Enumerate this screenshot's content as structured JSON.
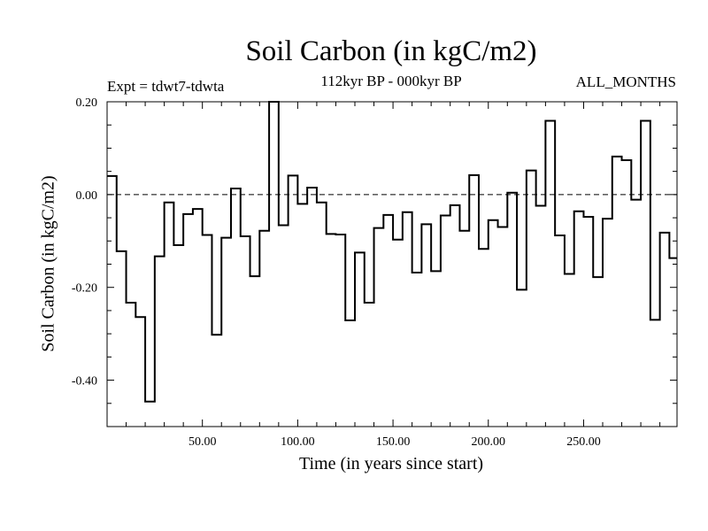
{
  "chart_data": {
    "type": "line",
    "style": "step",
    "title": "Soil Carbon (in kgC/m2)",
    "subtitle": "112kyr BP - 000kyr BP",
    "expt_label": "Expt = tdwt7-tdwta",
    "months_label": "ALL_MONTHS",
    "xlabel": "Time (in years since start)",
    "ylabel": "Soil Carbon (in kgC/m2)",
    "xlim": [
      0,
      299
    ],
    "ylim": [
      -0.5,
      0.2
    ],
    "xticks": [
      50,
      100,
      150,
      200,
      250
    ],
    "xtick_labels": [
      "50.00",
      "100.00",
      "150.00",
      "200.00",
      "250.00"
    ],
    "yticks": [
      0.2,
      0.0,
      -0.2,
      -0.4
    ],
    "ytick_labels": [
      "0.20",
      "0.00",
      "-0.20",
      "-0.40"
    ],
    "reference_line": 0.0,
    "series": [
      {
        "name": "Soil Carbon",
        "step": 5,
        "x_start": 0,
        "values": [
          0.04,
          -0.122,
          -0.233,
          -0.264,
          -0.446,
          -0.133,
          -0.017,
          -0.109,
          -0.042,
          -0.031,
          -0.087,
          -0.302,
          -0.093,
          0.013,
          -0.09,
          -0.176,
          -0.078,
          0.2,
          -0.066,
          0.041,
          -0.02,
          0.015,
          -0.017,
          -0.085,
          -0.086,
          -0.271,
          -0.125,
          -0.233,
          -0.072,
          -0.044,
          -0.097,
          -0.038,
          -0.168,
          -0.064,
          -0.165,
          -0.045,
          -0.023,
          -0.078,
          0.042,
          -0.117,
          -0.055,
          -0.07,
          0.004,
          -0.205,
          0.052,
          -0.024,
          0.159,
          -0.088,
          -0.171,
          -0.036,
          -0.048,
          -0.178,
          -0.052,
          0.082,
          0.074,
          -0.011,
          0.159,
          -0.27,
          -0.082,
          -0.137
        ]
      }
    ]
  }
}
